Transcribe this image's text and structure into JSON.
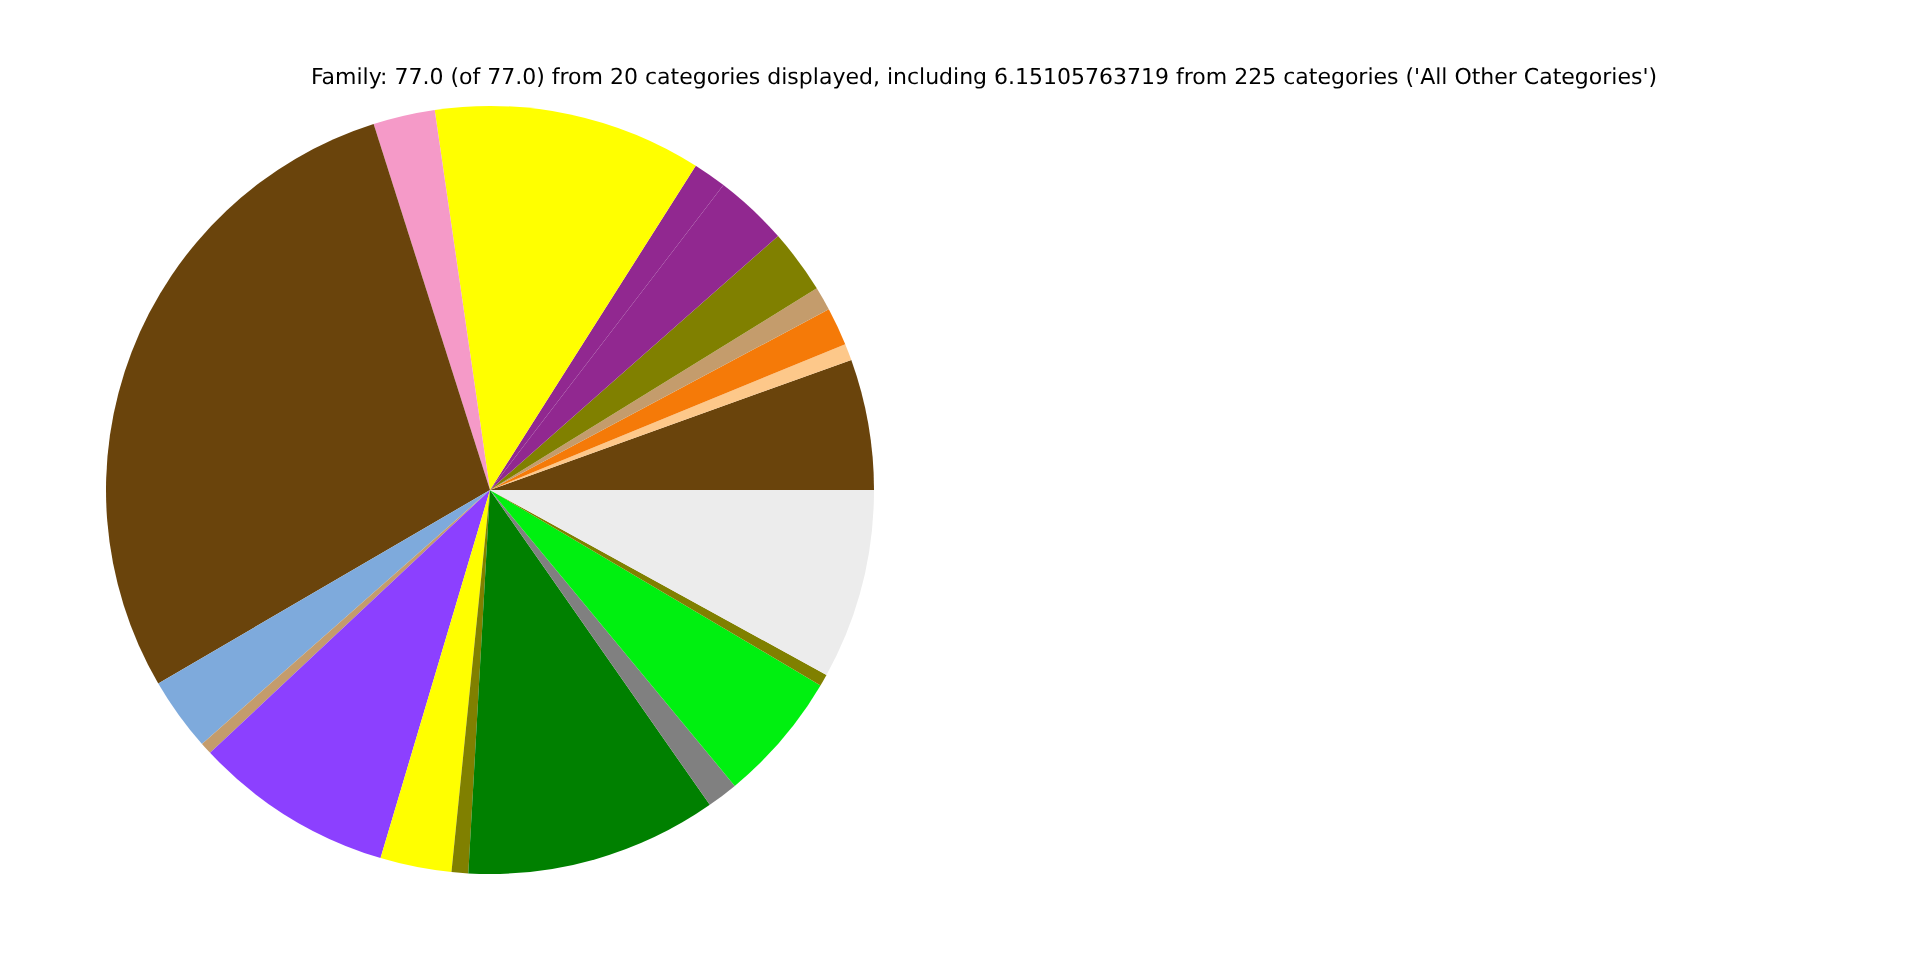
{
  "chart_data": {
    "type": "pie",
    "title": "Family: 77.0 (of 77.0) from 20 categories displayed, including 6.15105763719 from 225 categories ('All Other Categories')",
    "categories": [
      null,
      null,
      null,
      null,
      null,
      null,
      null,
      null,
      null,
      null,
      null,
      null,
      null,
      null,
      null,
      null,
      null,
      null,
      null,
      null
    ],
    "values": [
      5.5,
      0.7,
      1.6,
      1.0,
      2.7,
      3.1,
      1.4,
      11.3,
      2.6,
      28.5,
      3.1,
      0.5,
      8.4,
      3.0,
      0.7,
      10.6,
      1.3,
      5.5,
      0.5,
      8.0
    ],
    "colors": [
      "#6a440c",
      "#fdc88a",
      "#f57a08",
      "#c49c6c",
      "#808000",
      "#912890",
      "#912890",
      "#ffff00",
      "#f59ac8",
      "#6a440c",
      "#7eaadc",
      "#c49c6c",
      "#8c40ff",
      "#ffff00",
      "#808000",
      "#008000",
      "#808080",
      "#00f010",
      "#808000",
      "#ececec"
    ],
    "legend": false
  }
}
